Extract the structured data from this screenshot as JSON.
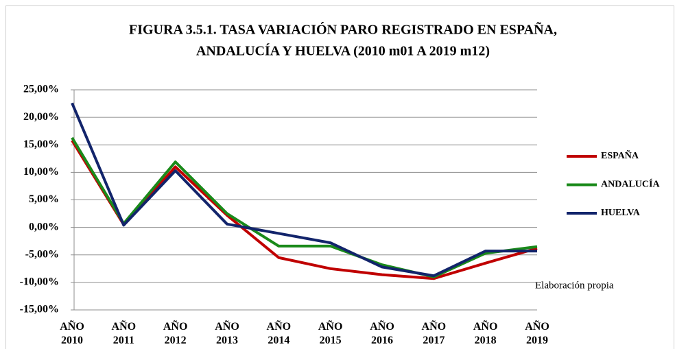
{
  "chart_data": {
    "type": "line",
    "title": [
      "FIGURA 3.5.1. TASA VARIACIÓN PARO REGISTRADO EN ESPAÑA,",
      "ANDALUCÍA Y HUELVA (2010 m01 A 2019 m12)"
    ],
    "categories": [
      "AÑO 2010",
      "AÑO 2011",
      "AÑO 2012",
      "AÑO 2013",
      "AÑO 2014",
      "AÑO 2015",
      "AÑO 2016",
      "AÑO 2017",
      "AÑO 2018",
      "AÑO 2019"
    ],
    "series": [
      {
        "name": "ESPAÑA",
        "color": "#c00000",
        "values": [
          15.8,
          0.5,
          11.0,
          2.2,
          -5.5,
          -7.5,
          -8.6,
          -9.3,
          -6.5,
          -3.8
        ]
      },
      {
        "name": "ANDALUCÍA",
        "color": "#1a8a1a",
        "values": [
          16.3,
          0.7,
          11.9,
          2.5,
          -3.4,
          -3.4,
          -6.8,
          -9.0,
          -4.7,
          -3.5
        ]
      },
      {
        "name": "HUELVA",
        "color": "#12246b",
        "values": [
          22.6,
          0.4,
          10.3,
          0.6,
          -1.1,
          -2.8,
          -7.2,
          -8.8,
          -4.3,
          -4.3
        ]
      }
    ],
    "ylim": [
      -15,
      25
    ],
    "yticks": [
      {
        "value": 25,
        "label": "25,00%"
      },
      {
        "value": 20,
        "label": "20,00%"
      },
      {
        "value": 15,
        "label": "15,00%"
      },
      {
        "value": 10,
        "label": "10,00%"
      },
      {
        "value": 5,
        "label": "5,00%"
      },
      {
        "value": 0,
        "label": "0,00%"
      },
      {
        "value": -5,
        "label": "-5,00%"
      },
      {
        "value": -10,
        "label": "-10,00%"
      },
      {
        "value": -15,
        "label": "-15,00%"
      }
    ],
    "grid": true,
    "annotation": "Elaboración propia"
  }
}
